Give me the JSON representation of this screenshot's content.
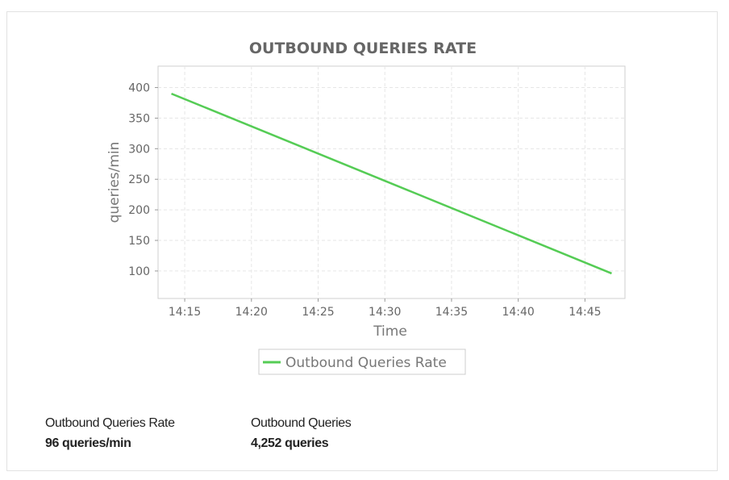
{
  "chart_data": {
    "type": "line",
    "title": "OUTBOUND QUERIES RATE",
    "xlabel": "Time",
    "ylabel": "queries/min",
    "x_ticks": [
      "14:15",
      "14:20",
      "14:25",
      "14:30",
      "14:35",
      "14:40",
      "14:45"
    ],
    "xlim": [
      "14:13",
      "14:48"
    ],
    "y_ticks": [
      100,
      150,
      200,
      250,
      300,
      350,
      400
    ],
    "ylim": [
      55,
      435
    ],
    "grid": true,
    "legend_position": "bottom",
    "series": [
      {
        "name": "Outbound Queries Rate",
        "color": "#55cc55",
        "x": [
          "14:14",
          "14:47"
        ],
        "y": [
          390,
          96
        ]
      }
    ]
  },
  "stats": {
    "rate_label": "Outbound Queries Rate",
    "rate_value": "96 queries/min",
    "total_label": "Outbound Queries",
    "total_value": "4,252 queries"
  }
}
